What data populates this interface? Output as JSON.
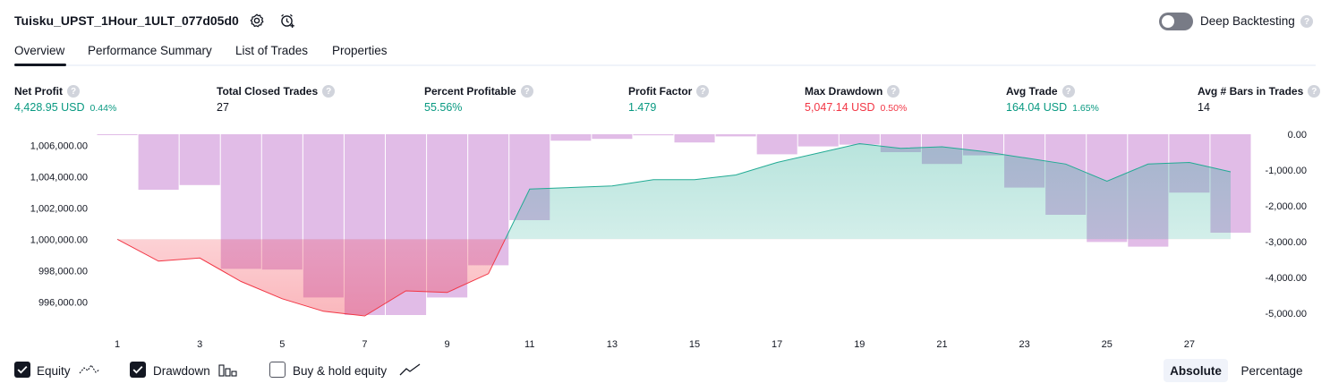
{
  "header": {
    "title": "Tuisku_UPST_1Hour_1ULT_077d05d0",
    "settings_icon": "gear-icon",
    "alert_icon": "alarm-clock-plus-icon",
    "deep_backtesting_label": "Deep Backtesting",
    "deep_backtesting_enabled": false,
    "help_glyph": "?"
  },
  "tabs": [
    {
      "label": "Overview",
      "active": true
    },
    {
      "label": "Performance Summary",
      "active": false
    },
    {
      "label": "List of Trades",
      "active": false
    },
    {
      "label": "Properties",
      "active": false
    }
  ],
  "metrics": [
    {
      "label": "Net Profit",
      "value": "4,428.95 USD",
      "pct": "0.44%",
      "color": "#089981"
    },
    {
      "label": "Total Closed Trades",
      "value": "27",
      "pct": "",
      "color": "#131722"
    },
    {
      "label": "Percent Profitable",
      "value": "55.56%",
      "pct": "",
      "color": "#089981"
    },
    {
      "label": "Profit Factor",
      "value": "1.479",
      "pct": "",
      "color": "#089981"
    },
    {
      "label": "Max Drawdown",
      "value": "5,047.14 USD",
      "pct": "0.50%",
      "color": "#f23645"
    },
    {
      "label": "Avg Trade",
      "value": "164.04 USD",
      "pct": "1.65%",
      "color": "#089981"
    },
    {
      "label": "Avg # Bars in Trades",
      "value": "14",
      "pct": "",
      "color": "#131722"
    }
  ],
  "chart_data": {
    "type": "line+bar",
    "x": [
      1,
      2,
      3,
      4,
      5,
      6,
      7,
      8,
      9,
      10,
      11,
      12,
      13,
      14,
      15,
      16,
      17,
      18,
      19,
      20,
      21,
      22,
      23,
      24,
      25,
      26,
      27,
      28
    ],
    "x_tick_labels": [
      "1",
      "3",
      "5",
      "7",
      "9",
      "11",
      "13",
      "15",
      "17",
      "19",
      "21",
      "23",
      "25",
      "27"
    ],
    "baseline": 1000000,
    "series": [
      {
        "name": "Equity",
        "axis": "left",
        "color_above": "#22ab94",
        "color_below": "#f23645",
        "values": [
          1000000,
          998600,
          998800,
          997300,
          996200,
          995400,
          995100,
          996700,
          996600,
          997800,
          1003200,
          1003300,
          1003400,
          1003800,
          1003800,
          1004100,
          1004900,
          1005500,
          1006100,
          1005800,
          1005900,
          1005600,
          1005200,
          1004800,
          1003700,
          1004800,
          1004900,
          1004300
        ]
      },
      {
        "name": "Drawdown",
        "axis": "right",
        "color": "#ce93d8",
        "values": [
          0,
          -1550,
          -1420,
          -3760,
          -3780,
          -4560,
          -5050,
          -5050,
          -4560,
          -3660,
          -2400,
          -180,
          -130,
          -30,
          -230,
          -60,
          -560,
          -340,
          -290,
          -500,
          -830,
          -590,
          -1490,
          -2250,
          -3010,
          -3140,
          -1630,
          -2750
        ]
      }
    ],
    "y_left": {
      "ticks": [
        "1,006,000.00",
        "1,004,000.00",
        "1,002,000.00",
        "1,000,000.00",
        "998,000.00",
        "996,000.00"
      ],
      "tick_values": [
        1006000,
        1004000,
        1002000,
        1000000,
        998000,
        996000
      ],
      "range": [
        994700,
        1006700
      ]
    },
    "y_right": {
      "ticks": [
        "0.00",
        "-1,000.00",
        "-2,000.00",
        "-3,000.00",
        "-4,000.00",
        "-5,000.00"
      ],
      "tick_values": [
        0,
        -1000,
        -2000,
        -3000,
        -4000,
        -5000
      ],
      "range": [
        -5250,
        0
      ]
    },
    "grid": false
  },
  "legend": {
    "items": [
      {
        "label": "Equity",
        "checked": true,
        "icon": "equity-line-icon"
      },
      {
        "label": "Drawdown",
        "checked": true,
        "icon": "drawdown-bars-icon"
      },
      {
        "label": "Buy & hold equity",
        "checked": false,
        "icon": "trend-line-icon"
      }
    ],
    "scale_buttons": [
      {
        "label": "Absolute",
        "active": true
      },
      {
        "label": "Percentage",
        "active": false
      }
    ]
  }
}
